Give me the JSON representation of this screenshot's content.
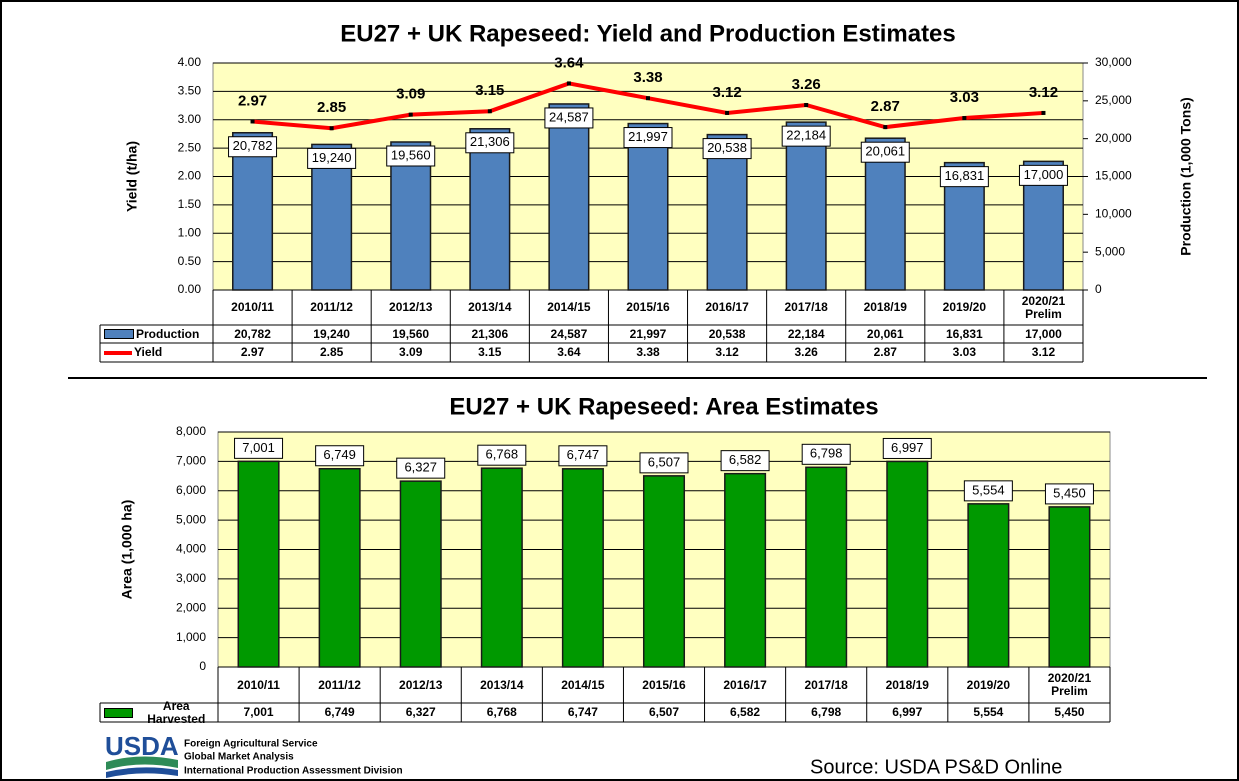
{
  "chart_data": [
    {
      "type": "combo",
      "title": "EU27 + UK Rapeseed: Yield and Production Estimates",
      "ylabel": "Yield (t/ha)",
      "y2label": "Production (1,000 Tons)",
      "categories": [
        "2010/11",
        "2011/12",
        "2012/13",
        "2013/14",
        "2014/15",
        "2015/16",
        "2016/17",
        "2017/18",
        "2018/19",
        "2019/20",
        "2020/21\nPrelim"
      ],
      "series": [
        {
          "name": "Production",
          "type": "bar",
          "axis": "y2",
          "color": "#4f81bd",
          "values": [
            20782,
            19240,
            19560,
            21306,
            24587,
            21997,
            20538,
            22184,
            20061,
            16831,
            17000
          ],
          "value_labels": [
            "20,782",
            "19,240",
            "19,560",
            "21,306",
            "24,587",
            "21,997",
            "20,538",
            "22,184",
            "20,061",
            "16,831",
            "17,000"
          ]
        },
        {
          "name": "Yield",
          "type": "line",
          "axis": "y",
          "color": "#ff0000",
          "values": [
            2.97,
            2.85,
            3.09,
            3.15,
            3.64,
            3.38,
            3.12,
            3.26,
            2.87,
            3.03,
            3.12
          ]
        }
      ],
      "ylim": [
        0,
        4
      ],
      "yticks": [
        {
          "value": 0,
          "label": "0.00"
        },
        {
          "value": 0.5,
          "label": "0.50"
        },
        {
          "value": 1,
          "label": "1.00"
        },
        {
          "value": 1.5,
          "label": "1.50"
        },
        {
          "value": 2,
          "label": "2.00"
        },
        {
          "value": 2.5,
          "label": "2.50"
        },
        {
          "value": 3,
          "label": "3.00"
        },
        {
          "value": 3.5,
          "label": "3.50"
        },
        {
          "value": 4,
          "label": "4.00"
        }
      ],
      "y2lim": [
        0,
        30000
      ],
      "y2ticks": [
        0,
        {
          "value": 5000,
          "label": "5,000"
        },
        {
          "value": 10000,
          "label": "10,000"
        },
        {
          "value": 15000,
          "label": "15,000"
        },
        {
          "value": 20000,
          "label": "20,000"
        },
        {
          "value": 25000,
          "label": "25,000"
        },
        {
          "value": 30000,
          "label": "30,000"
        }
      ],
      "grid": true,
      "background": "#ffffc0"
    },
    {
      "type": "bar",
      "title": "EU27 + UK Rapeseed: Area Estimates",
      "ylabel": "Area  (1,000 ha)",
      "categories": [
        "2010/11",
        "2011/12",
        "2012/13",
        "2013/14",
        "2014/15",
        "2015/16",
        "2016/17",
        "2017/18",
        "2018/19",
        "2019/20",
        "2020/21\nPrelim"
      ],
      "series": [
        {
          "name": "Area Harvested",
          "type": "bar",
          "axis": "y",
          "color": "#009900",
          "values": [
            7001,
            6749,
            6327,
            6768,
            6747,
            6507,
            6582,
            6798,
            6997,
            5554,
            5450
          ],
          "value_labels": [
            "7,001",
            "6,749",
            "6,327",
            "6,768",
            "6,747",
            "6,507",
            "6,582",
            "6,798",
            "6,997",
            "5,554",
            "5,450"
          ]
        }
      ],
      "ylim": [
        0,
        8000
      ],
      "yticks": [
        0,
        {
          "value": 1000,
          "label": "1,000"
        },
        {
          "value": 2000,
          "label": "2,000"
        },
        {
          "value": 3000,
          "label": "3,000"
        },
        {
          "value": 4000,
          "label": "4,000"
        },
        {
          "value": 5000,
          "label": "5,000"
        },
        {
          "value": 6000,
          "label": "6,000"
        },
        {
          "value": 7000,
          "label": "7,000"
        },
        {
          "value": 8000,
          "label": "8,000"
        }
      ],
      "grid": true,
      "background": "#ffffc0"
    }
  ],
  "footer": {
    "logo": "USDA",
    "agency": "Foreign Agricultural Service",
    "unit": "Global Market Analysis",
    "division": "International Production Assessment Division",
    "source": "Source: USDA PS&D Online"
  }
}
